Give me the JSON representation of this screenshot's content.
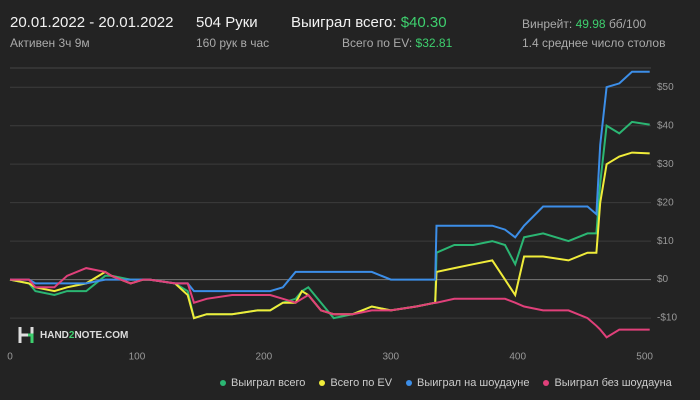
{
  "header": {
    "date_range": "20.01.2022 - 20.01.2022",
    "active": "Активен 3ч 9м",
    "hands": "504 Руки",
    "hands_per_hour": "160 рук в час",
    "won_label": "Выиграл всего:",
    "won_value": "$40.30",
    "ev_label": "Всего по EV:",
    "ev_value": "$32.81",
    "winrate_label": "Винрейт:",
    "winrate_value": "49.98",
    "winrate_unit": "бб/100",
    "tables": "1.4 среднее число столов"
  },
  "logo": {
    "part1": "HAND",
    "part2": "2",
    "part3": "NOTE.COM"
  },
  "chart_data": {
    "type": "line",
    "x": [
      0,
      15,
      20,
      35,
      45,
      60,
      75,
      80,
      95,
      105,
      110,
      130,
      140,
      145,
      155,
      175,
      195,
      205,
      215,
      225,
      230,
      235,
      245,
      255,
      270,
      285,
      300,
      320,
      335,
      336,
      350,
      365,
      380,
      390,
      398,
      405,
      420,
      440,
      455,
      462,
      465,
      470,
      480,
      490,
      504
    ],
    "series": [
      {
        "name": "Выиграл всего",
        "color": "#2bb673",
        "values": [
          0,
          -1,
          -3,
          -4,
          -3,
          -3,
          1,
          1,
          0,
          0,
          0,
          -1,
          -3,
          -10,
          -9,
          -9,
          -8,
          -8,
          -6,
          -5,
          -3,
          -2,
          -6,
          -10,
          -9,
          -7,
          -8,
          -7,
          -6,
          7,
          9,
          9,
          10,
          9,
          4,
          11,
          12,
          10,
          12,
          12,
          25,
          40,
          38,
          41,
          40.3
        ]
      },
      {
        "name": "Всего по EV",
        "color": "#f0ec3a",
        "values": [
          0,
          -1,
          -2,
          -3,
          -2,
          -1,
          2,
          1,
          -1,
          0,
          0,
          -1,
          -4,
          -10,
          -9,
          -9,
          -8,
          -8,
          -6,
          -6,
          -3,
          -4,
          -8,
          -9,
          -9,
          -7,
          -8,
          -7,
          -6,
          2,
          3,
          4,
          5,
          0,
          -4,
          6,
          6,
          5,
          7,
          7,
          20,
          30,
          32,
          33,
          32.8
        ]
      },
      {
        "name": "Выиграл на шоудауне",
        "color": "#3c8ee8",
        "values": [
          0,
          0,
          -1,
          -1,
          -1,
          -1,
          0,
          0,
          0,
          0,
          0,
          -1,
          -1,
          -3,
          -3,
          -3,
          -3,
          -3,
          -2,
          2,
          2,
          2,
          2,
          2,
          2,
          2,
          0,
          0,
          0,
          14,
          14,
          14,
          14,
          13,
          11,
          14,
          19,
          19,
          19,
          17,
          35,
          50,
          51,
          54,
          54
        ]
      },
      {
        "name": "Выиграл без шоудауна",
        "color": "#e0407a",
        "values": [
          0,
          0,
          -2,
          -2,
          1,
          3,
          2,
          1,
          -1,
          0,
          0,
          -1,
          -1,
          -6,
          -5,
          -4,
          -4,
          -4,
          -5,
          -6,
          -5,
          -4,
          -8,
          -9,
          -9,
          -8,
          -8,
          -7,
          -6,
          -6,
          -5,
          -5,
          -5,
          -5,
          -6,
          -7,
          -8,
          -8,
          -10,
          -12,
          -13,
          -15,
          -13,
          -13,
          -13
        ]
      }
    ],
    "xlim": [
      0,
      505
    ],
    "xticks": [
      0,
      100,
      200,
      300,
      400,
      500
    ],
    "ylim": [
      -17,
      55
    ],
    "yticks": [
      {
        "value": 50,
        "label": "$50"
      },
      {
        "value": 40,
        "label": "$40"
      },
      {
        "value": 30,
        "label": "$30"
      },
      {
        "value": 20,
        "label": "$20"
      },
      {
        "value": 10,
        "label": "$10"
      },
      {
        "value": 0,
        "label": "$0"
      },
      {
        "value": -10,
        "label": "-$10"
      }
    ],
    "grid": true
  }
}
